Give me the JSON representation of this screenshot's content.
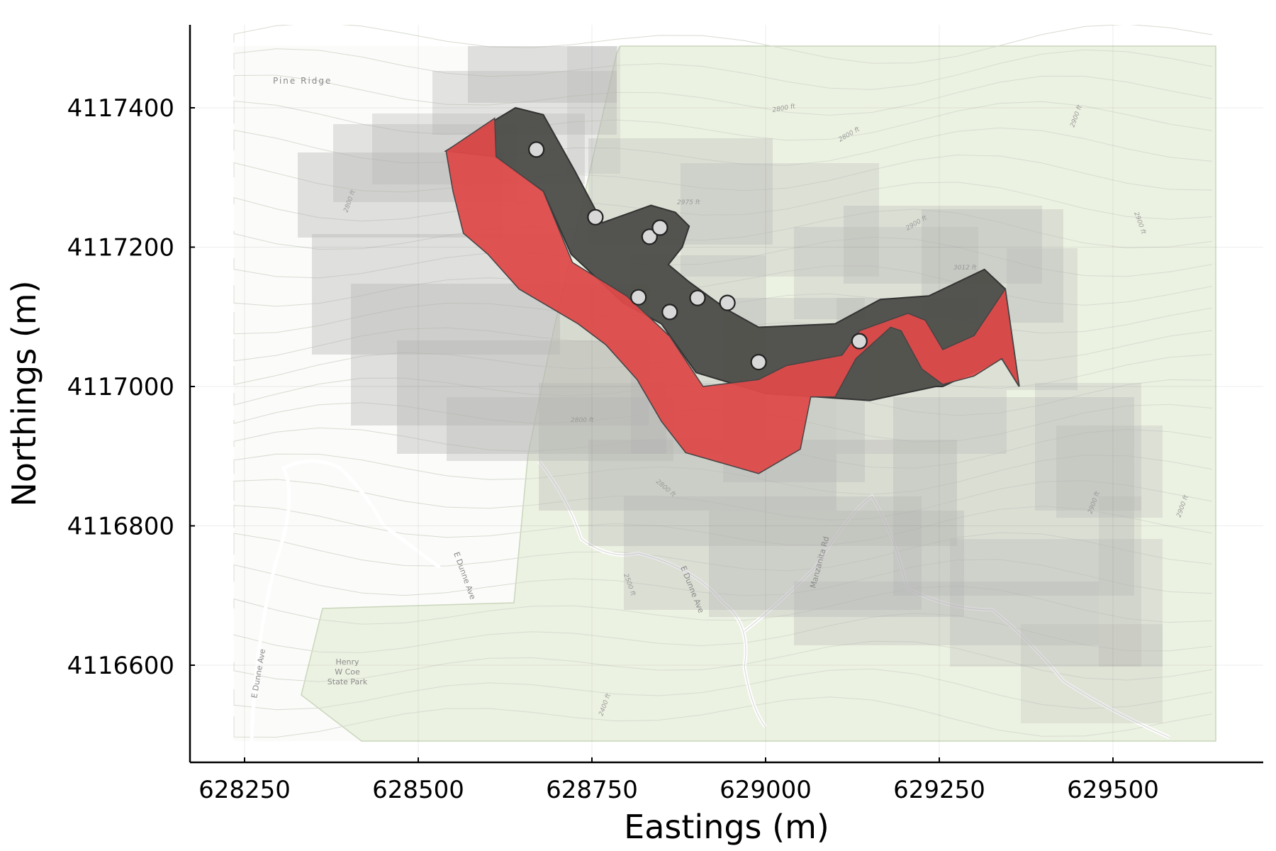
{
  "chart_data": {
    "type": "map",
    "xlabel": "Eastings (m)",
    "ylabel": "Northings (m)",
    "xlim": [
      628175,
      629650
    ],
    "ylim": [
      4116480,
      4117520
    ],
    "xticks": [
      628250,
      628500,
      628750,
      629000,
      629250,
      629500
    ],
    "yticks": [
      4116600,
      4116800,
      4117000,
      4117200,
      4117400
    ],
    "grid": true,
    "colors": {
      "red_zone": "#dd4a4a",
      "dark_zone": "#4c4c48",
      "shading": "#b8b8b8",
      "park_green": "#e8f0dc",
      "points": "#d8d8d8"
    },
    "points": [
      {
        "x": 628670,
        "y": 4117340
      },
      {
        "x": 628755,
        "y": 4117243
      },
      {
        "x": 628833,
        "y": 4117215
      },
      {
        "x": 628848,
        "y": 4117228
      },
      {
        "x": 628817,
        "y": 4117128
      },
      {
        "x": 628862,
        "y": 4117107
      },
      {
        "x": 628902,
        "y": 4117127
      },
      {
        "x": 628945,
        "y": 4117120
      },
      {
        "x": 628990,
        "y": 4117035
      },
      {
        "x": 629135,
        "y": 4117065
      }
    ],
    "dark_polygon": [
      [
        628540,
        4117338
      ],
      [
        628615,
        4117385
      ],
      [
        628640,
        4117400
      ],
      [
        628680,
        4117390
      ],
      [
        628725,
        4117310
      ],
      [
        628765,
        4117235
      ],
      [
        628835,
        4117260
      ],
      [
        628870,
        4117250
      ],
      [
        628890,
        4117230
      ],
      [
        628880,
        4117200
      ],
      [
        628860,
        4117175
      ],
      [
        628890,
        4117150
      ],
      [
        628945,
        4117110
      ],
      [
        628990,
        4117085
      ],
      [
        629100,
        4117090
      ],
      [
        629165,
        4117125
      ],
      [
        629235,
        4117130
      ],
      [
        629315,
        4117168
      ],
      [
        629345,
        4117140
      ],
      [
        629365,
        4117000
      ],
      [
        629340,
        4117040
      ],
      [
        629255,
        4117000
      ],
      [
        629245,
        4117000
      ],
      [
        629150,
        4116980
      ],
      [
        629000,
        4116990
      ],
      [
        628900,
        4117020
      ],
      [
        628850,
        4117090
      ],
      [
        628795,
        4117120
      ],
      [
        628720,
        4117190
      ],
      [
        628680,
        4117280
      ],
      [
        628610,
        4117330
      ]
    ],
    "red_polygon": [
      [
        628540,
        4117338
      ],
      [
        628610,
        4117385
      ],
      [
        628612,
        4117330
      ],
      [
        628680,
        4117280
      ],
      [
        628722,
        4117178
      ],
      [
        628800,
        4117130
      ],
      [
        628862,
        4117072
      ],
      [
        628910,
        4117000
      ],
      [
        628990,
        4117010
      ],
      [
        629030,
        4117030
      ],
      [
        629110,
        4117045
      ],
      [
        629135,
        4117080
      ],
      [
        629205,
        4117105
      ],
      [
        629230,
        4117095
      ],
      [
        629255,
        4117053
      ],
      [
        629300,
        4117073
      ],
      [
        629345,
        4117140
      ],
      [
        629365,
        4117000
      ],
      [
        629340,
        4117040
      ],
      [
        629300,
        4117015
      ],
      [
        629255,
        4117003
      ],
      [
        629225,
        4117025
      ],
      [
        629195,
        4117080
      ],
      [
        629180,
        4117085
      ],
      [
        629130,
        4117040
      ],
      [
        629100,
        4116985
      ],
      [
        629065,
        4116985
      ],
      [
        629050,
        4116910
      ],
      [
        628990,
        4116875
      ],
      [
        628885,
        4116905
      ],
      [
        628850,
        4116950
      ],
      [
        628815,
        4117010
      ],
      [
        628770,
        4117060
      ],
      [
        628730,
        4117090
      ],
      [
        628645,
        4117140
      ],
      [
        628600,
        4117190
      ],
      [
        628565,
        4117220
      ],
      [
        628550,
        4117280
      ]
    ],
    "annotations": {
      "pine_ridge": "Pine Ridge",
      "park": [
        "Henry",
        "W Coe",
        "State Park"
      ],
      "road_1": "E Dunne Ave",
      "road_2": "E Dunne Ave",
      "road_3": "E Dunne Ave",
      "road_4": "Manzanita Rd",
      "elev_1": "2975 ft",
      "elev_2": "3012 ft",
      "contour": "2800 ft",
      "contour_2": "2900 ft",
      "contour_3": "2500 ft",
      "contour_4": "2400 ft"
    }
  }
}
